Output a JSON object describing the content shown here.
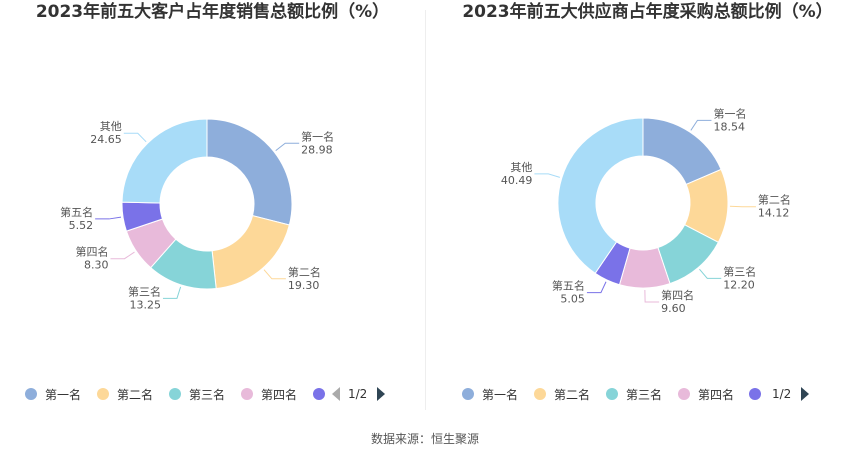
{
  "source": "数据来源：恒生聚源",
  "legend_pager": "1/2",
  "colors": [
    "#8eaedb",
    "#fdd898",
    "#86d4d8",
    "#e8bada",
    "#7a72e8",
    "#a8dcf8"
  ],
  "chart_data": [
    {
      "type": "pie",
      "title": "2023年前五大客户占年度销售总额比例（%）",
      "categories": [
        "第一名",
        "第二名",
        "第三名",
        "第四名",
        "第五名",
        "其他"
      ],
      "values": [
        28.98,
        19.3,
        13.25,
        8.3,
        5.52,
        24.65
      ],
      "value_labels": [
        "28.98",
        "19.30",
        "13.25",
        "8.30",
        "5.52",
        "24.65"
      ],
      "legend": [
        "第一名",
        "第二名",
        "第三名",
        "第四名"
      ],
      "legend_placement": "bottom"
    },
    {
      "type": "pie",
      "title": "2023年前五大供应商占年度采购总额比例（%）",
      "categories": [
        "第一名",
        "第二名",
        "第三名",
        "第四名",
        "第五名",
        "其他"
      ],
      "values": [
        18.54,
        14.12,
        12.2,
        9.6,
        5.05,
        40.49
      ],
      "value_labels": [
        "18.54",
        "14.12",
        "12.20",
        "9.60",
        "5.05",
        "40.49"
      ],
      "legend": [
        "第一名",
        "第二名",
        "第三名",
        "第四名"
      ],
      "legend_placement": "bottom"
    }
  ]
}
